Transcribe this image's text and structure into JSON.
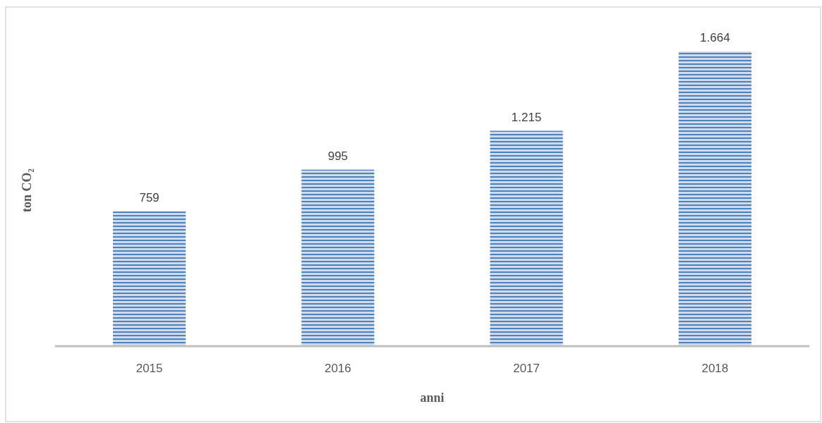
{
  "chart_data": {
    "type": "bar",
    "xlabel": "anni",
    "ylabel": "ton CO₂",
    "categories": [
      "2015",
      "2016",
      "2017",
      "2018"
    ],
    "values": [
      759,
      995,
      1215,
      1664
    ],
    "value_labels": [
      "759",
      "995",
      "1.215",
      "1.664"
    ],
    "color": "#4f81bd"
  }
}
